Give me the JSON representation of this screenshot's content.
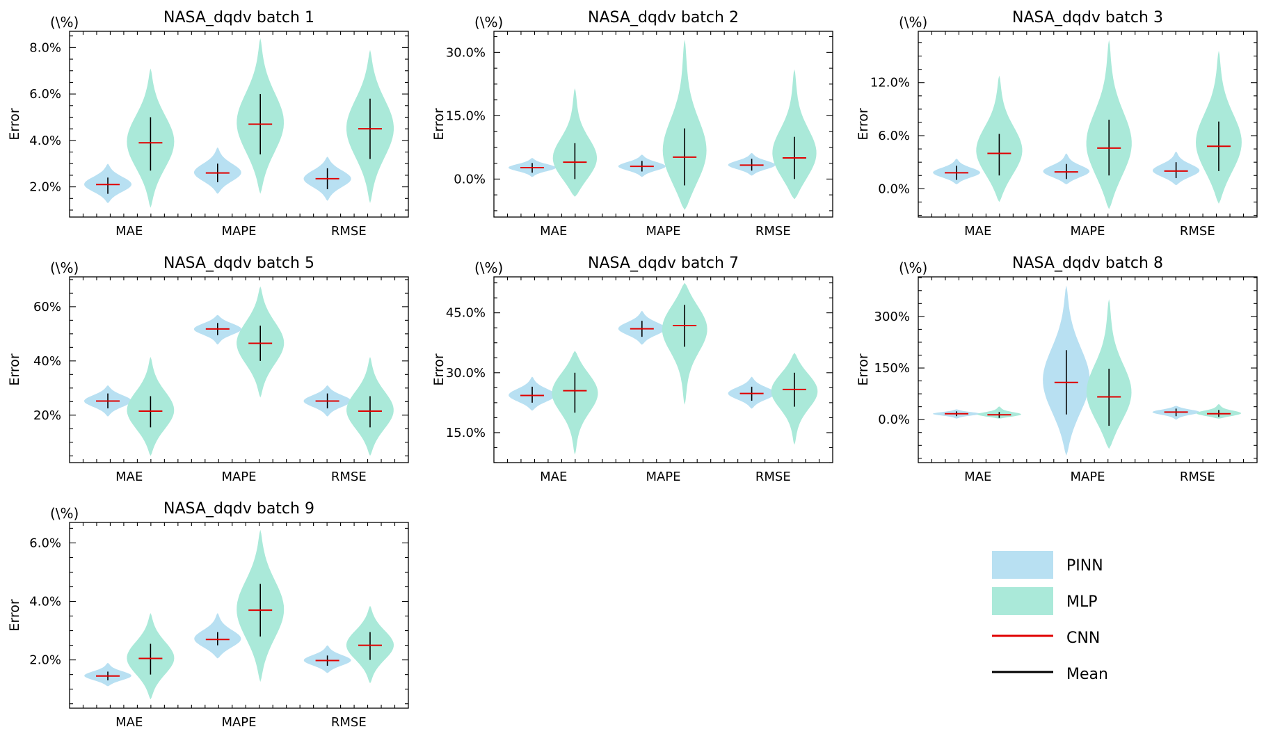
{
  "colors": {
    "pinn": "#b8e0f2",
    "mlp": "#aae9d9",
    "median_line": "#e00000",
    "range_line": "#000000",
    "axis": "#000000"
  },
  "legend": {
    "items": [
      {
        "label": "PINN",
        "kind": "patch",
        "color": "#b8e0f2"
      },
      {
        "label": "MLP",
        "kind": "patch",
        "color": "#aae9d9"
      },
      {
        "label": "CNN",
        "kind": "line",
        "color": "#e00000"
      },
      {
        "label": "Mean",
        "kind": "line",
        "color": "#000000"
      }
    ]
  },
  "chart_data": [
    {
      "type": "violin",
      "title": "NASA_dqdv batch 1",
      "ylabel": "Error",
      "unit_label": "(\\%)",
      "categories": [
        "MAE",
        "MAPE",
        "RMSE"
      ],
      "ylim": [
        0.7,
        8.7
      ],
      "yticks": [
        2,
        4,
        6,
        8
      ],
      "ytick_labels": [
        "2.0%",
        "4.0%",
        "6.0%",
        "8.0%"
      ],
      "series": [
        {
          "name": "PINN",
          "color": "#b8e0f2",
          "groups": [
            {
              "min": 1.3,
              "max": 3.0,
              "median": 2.1,
              "bar_low": 1.7,
              "bar_high": 2.4
            },
            {
              "min": 1.7,
              "max": 3.7,
              "median": 2.6,
              "bar_low": 2.2,
              "bar_high": 3.0
            },
            {
              "min": 1.4,
              "max": 3.3,
              "median": 2.35,
              "bar_low": 1.9,
              "bar_high": 2.8
            }
          ]
        },
        {
          "name": "MLP",
          "color": "#aae9d9",
          "groups": [
            {
              "min": 1.1,
              "max": 7.1,
              "median": 3.9,
              "bar_low": 2.7,
              "bar_high": 5.0
            },
            {
              "min": 1.7,
              "max": 8.4,
              "median": 4.7,
              "bar_low": 3.4,
              "bar_high": 6.0
            },
            {
              "min": 1.3,
              "max": 7.9,
              "median": 4.5,
              "bar_low": 3.2,
              "bar_high": 5.8
            }
          ]
        }
      ]
    },
    {
      "type": "violin",
      "title": "NASA_dqdv batch 2",
      "ylabel": "Error",
      "unit_label": "(\\%)",
      "categories": [
        "MAE",
        "MAPE",
        "RMSE"
      ],
      "ylim": [
        -9,
        35
      ],
      "yticks": [
        0,
        15,
        30
      ],
      "ytick_labels": [
        "0.0%",
        "15.0%",
        "30.0%"
      ],
      "series": [
        {
          "name": "PINN",
          "color": "#b8e0f2",
          "groups": [
            {
              "min": 0.5,
              "max": 5.0,
              "median": 2.7,
              "bar_low": 1.5,
              "bar_high": 3.8
            },
            {
              "min": 0.5,
              "max": 5.8,
              "median": 3.0,
              "bar_low": 1.8,
              "bar_high": 4.3
            },
            {
              "min": 0.8,
              "max": 6.2,
              "median": 3.3,
              "bar_low": 2.0,
              "bar_high": 4.8
            }
          ]
        },
        {
          "name": "MLP",
          "color": "#aae9d9",
          "groups": [
            {
              "min": -4.2,
              "max": 21.5,
              "median": 4.0,
              "bar_low": 0.0,
              "bar_high": 8.5
            },
            {
              "min": -7.3,
              "max": 33.0,
              "median": 5.2,
              "bar_low": -1.5,
              "bar_high": 12.0
            },
            {
              "min": -4.8,
              "max": 26.0,
              "median": 5.0,
              "bar_low": 0.0,
              "bar_high": 10.0
            }
          ]
        }
      ]
    },
    {
      "type": "violin",
      "title": "NASA_dqdv batch 3",
      "ylabel": "Error",
      "unit_label": "(\\%)",
      "categories": [
        "MAE",
        "MAPE",
        "RMSE"
      ],
      "ylim": [
        -3.2,
        17.8
      ],
      "yticks": [
        0,
        6,
        12
      ],
      "ytick_labels": [
        "0.0%",
        "6.0%",
        "12.0%"
      ],
      "series": [
        {
          "name": "PINN",
          "color": "#b8e0f2",
          "groups": [
            {
              "min": 0.5,
              "max": 3.4,
              "median": 1.8,
              "bar_low": 1.0,
              "bar_high": 2.6
            },
            {
              "min": 0.5,
              "max": 4.0,
              "median": 1.9,
              "bar_low": 1.1,
              "bar_high": 2.8
            },
            {
              "min": 0.4,
              "max": 4.2,
              "median": 2.0,
              "bar_low": 1.2,
              "bar_high": 3.0
            }
          ]
        },
        {
          "name": "MLP",
          "color": "#aae9d9",
          "groups": [
            {
              "min": -1.5,
              "max": 12.8,
              "median": 4.0,
              "bar_low": 1.5,
              "bar_high": 6.2
            },
            {
              "min": -2.3,
              "max": 16.8,
              "median": 4.6,
              "bar_low": 1.5,
              "bar_high": 7.8
            },
            {
              "min": -1.7,
              "max": 15.6,
              "median": 4.8,
              "bar_low": 2.0,
              "bar_high": 7.6
            }
          ]
        }
      ]
    },
    {
      "type": "violin",
      "title": "NASA_dqdv batch 5",
      "ylabel": "Error",
      "unit_label": "(\\%)",
      "categories": [
        "MAE",
        "MAPE",
        "RMSE"
      ],
      "ylim": [
        2.5,
        71
      ],
      "yticks": [
        20,
        40,
        60
      ],
      "ytick_labels": [
        "20%",
        "40%",
        "60%"
      ],
      "series": [
        {
          "name": "PINN",
          "color": "#b8e0f2",
          "groups": [
            {
              "min": 19.5,
              "max": 31.0,
              "median": 25.2,
              "bar_low": 22.5,
              "bar_high": 28.0
            },
            {
              "min": 46.0,
              "max": 57.0,
              "median": 51.8,
              "bar_low": 49.5,
              "bar_high": 54.0
            },
            {
              "min": 19.5,
              "max": 31.0,
              "median": 25.2,
              "bar_low": 22.5,
              "bar_high": 28.0
            }
          ]
        },
        {
          "name": "MLP",
          "color": "#aae9d9",
          "groups": [
            {
              "min": 5.0,
              "max": 41.5,
              "median": 21.5,
              "bar_low": 15.5,
              "bar_high": 27.0
            },
            {
              "min": 26.5,
              "max": 67.5,
              "median": 46.5,
              "bar_low": 40.0,
              "bar_high": 53.0
            },
            {
              "min": 5.0,
              "max": 41.5,
              "median": 21.5,
              "bar_low": 15.5,
              "bar_high": 27.0
            }
          ]
        }
      ]
    },
    {
      "type": "violin",
      "title": "NASA_dqdv batch 7",
      "ylabel": "Error",
      "unit_label": "(\\%)",
      "categories": [
        "MAE",
        "MAPE",
        "RMSE"
      ],
      "ylim": [
        7.5,
        54
      ],
      "yticks": [
        15,
        30,
        45
      ],
      "ytick_labels": [
        "15.0%",
        "30.0%",
        "45.0%"
      ],
      "series": [
        {
          "name": "PINN",
          "color": "#b8e0f2",
          "groups": [
            {
              "min": 20.5,
              "max": 29.0,
              "median": 24.3,
              "bar_low": 22.5,
              "bar_high": 26.5
            },
            {
              "min": 37.0,
              "max": 45.5,
              "median": 41.0,
              "bar_low": 39.0,
              "bar_high": 43.0
            },
            {
              "min": 21.0,
              "max": 29.0,
              "median": 24.8,
              "bar_low": 23.0,
              "bar_high": 26.5
            }
          ]
        },
        {
          "name": "MLP",
          "color": "#aae9d9",
          "groups": [
            {
              "min": 9.5,
              "max": 35.5,
              "median": 25.5,
              "bar_low": 20.0,
              "bar_high": 30.0
            },
            {
              "min": 22.0,
              "max": 52.5,
              "median": 41.8,
              "bar_low": 36.5,
              "bar_high": 47.0
            },
            {
              "min": 12.0,
              "max": 35.0,
              "median": 25.8,
              "bar_low": 21.5,
              "bar_high": 30.0
            }
          ]
        }
      ]
    },
    {
      "type": "violin",
      "title": "NASA_dqdv batch 8",
      "ylabel": "Error",
      "unit_label": "(\\%)",
      "categories": [
        "MAE",
        "MAPE",
        "RMSE"
      ],
      "ylim": [
        -125,
        415
      ],
      "yticks": [
        0,
        150,
        300
      ],
      "ytick_labels": [
        "0.0%",
        "150%",
        "300%"
      ],
      "series": [
        {
          "name": "PINN",
          "color": "#b8e0f2",
          "groups": [
            {
              "min": 3,
              "max": 30,
              "median": 17,
              "bar_low": 10,
              "bar_high": 24
            },
            {
              "min": -105,
              "max": 390,
              "median": 108,
              "bar_low": 15,
              "bar_high": 202
            },
            {
              "min": 0,
              "max": 40,
              "median": 22,
              "bar_low": 10,
              "bar_high": 32
            }
          ]
        },
        {
          "name": "MLP",
          "color": "#aae9d9",
          "groups": [
            {
              "min": 3,
              "max": 38,
              "median": 14,
              "bar_low": 5,
              "bar_high": 22
            },
            {
              "min": -85,
              "max": 350,
              "median": 66,
              "bar_low": -18,
              "bar_high": 148
            },
            {
              "min": 3,
              "max": 45,
              "median": 17,
              "bar_low": 8,
              "bar_high": 28
            }
          ]
        }
      ]
    },
    {
      "type": "violin",
      "title": "NASA_dqdv batch 9",
      "ylabel": "Error",
      "unit_label": "(\\%)",
      "categories": [
        "MAE",
        "MAPE",
        "RMSE"
      ],
      "ylim": [
        0.35,
        6.7
      ],
      "yticks": [
        2,
        4,
        6
      ],
      "ytick_labels": [
        "2.0%",
        "4.0%",
        "6.0%"
      ],
      "series": [
        {
          "name": "PINN",
          "color": "#b8e0f2",
          "groups": [
            {
              "min": 1.1,
              "max": 1.9,
              "median": 1.45,
              "bar_low": 1.3,
              "bar_high": 1.6
            },
            {
              "min": 2.05,
              "max": 3.6,
              "median": 2.7,
              "bar_low": 2.5,
              "bar_high": 2.95
            },
            {
              "min": 1.55,
              "max": 2.5,
              "median": 1.98,
              "bar_low": 1.8,
              "bar_high": 2.15
            }
          ]
        },
        {
          "name": "MLP",
          "color": "#aae9d9",
          "groups": [
            {
              "min": 0.65,
              "max": 3.6,
              "median": 2.05,
              "bar_low": 1.5,
              "bar_high": 2.55
            },
            {
              "min": 1.25,
              "max": 6.45,
              "median": 3.7,
              "bar_low": 2.8,
              "bar_high": 4.6
            },
            {
              "min": 1.2,
              "max": 3.85,
              "median": 2.5,
              "bar_low": 2.0,
              "bar_high": 2.95
            }
          ]
        }
      ]
    }
  ]
}
